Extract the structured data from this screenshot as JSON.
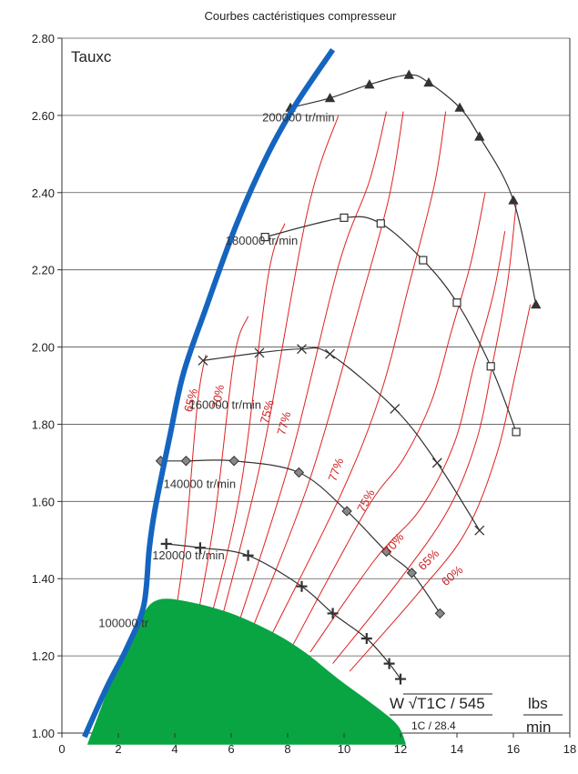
{
  "chart_data": {
    "type": "line",
    "title": "Courbes cactéristiques compresseur",
    "ylabel": "Tauxc",
    "xlim": [
      0,
      18
    ],
    "ylim": [
      1.0,
      2.8
    ],
    "xticks": [
      0,
      2,
      4,
      6,
      8,
      10,
      12,
      14,
      16,
      18
    ],
    "xtick_labels": [
      "0",
      "2",
      "4",
      "6",
      "8",
      "10",
      "12",
      "14",
      "16",
      "18"
    ],
    "yticks": [
      1.0,
      1.2,
      1.4,
      1.6,
      1.8,
      2.0,
      2.2,
      2.4,
      2.6,
      2.8
    ],
    "ytick_labels": [
      "1.00",
      "1.20",
      "1.40",
      "1.60",
      "1.80",
      "2.00",
      "2.20",
      "2.40",
      "2.60",
      "2.80"
    ],
    "grid": "horizontal",
    "units": {
      "flow_formula": "W √T1C / 545",
      "flow_formula_lower": "1C / 28.4",
      "flow_unit_num": "lbs",
      "flow_unit_den": "min"
    },
    "speed_lines": [
      {
        "label": "200000 tr/min",
        "marker": "triangle",
        "label_pos": [
          7.1,
          2.585
        ],
        "points": [
          [
            8.1,
            2.62
          ],
          [
            9.5,
            2.645
          ],
          [
            10.9,
            2.68
          ],
          [
            12.3,
            2.705
          ],
          [
            13.0,
            2.685
          ],
          [
            14.1,
            2.62
          ],
          [
            14.8,
            2.545
          ],
          [
            16.0,
            2.38
          ],
          [
            16.8,
            2.11
          ]
        ]
      },
      {
        "label": "180000 tr/min",
        "marker": "square",
        "label_pos": [
          5.8,
          2.265
        ],
        "points": [
          [
            7.2,
            2.285
          ],
          [
            10.0,
            2.335
          ],
          [
            11.3,
            2.32
          ],
          [
            12.8,
            2.225
          ],
          [
            14.0,
            2.115
          ],
          [
            15.2,
            1.95
          ],
          [
            16.1,
            1.78
          ]
        ]
      },
      {
        "label": "160000 tr/min",
        "marker": "cross",
        "label_pos": [
          4.5,
          1.84
        ],
        "points": [
          [
            5.0,
            1.965
          ],
          [
            7.0,
            1.985
          ],
          [
            8.5,
            1.995
          ],
          [
            9.5,
            1.982
          ],
          [
            11.8,
            1.84
          ],
          [
            13.3,
            1.7
          ],
          [
            14.8,
            1.525
          ]
        ]
      },
      {
        "label": "140000 tr/min",
        "marker": "diamond",
        "label_pos": [
          3.6,
          1.635
        ],
        "points": [
          [
            3.5,
            1.705
          ],
          [
            4.4,
            1.705
          ],
          [
            6.1,
            1.705
          ],
          [
            8.4,
            1.675
          ],
          [
            10.1,
            1.575
          ],
          [
            11.5,
            1.47
          ],
          [
            12.4,
            1.415
          ],
          [
            13.4,
            1.31
          ]
        ]
      },
      {
        "label": "120000 tr/min",
        "marker": "plus",
        "label_pos": [
          3.2,
          1.45
        ],
        "points": [
          [
            3.7,
            1.49
          ],
          [
            4.9,
            1.48
          ],
          [
            6.6,
            1.46
          ],
          [
            8.5,
            1.38
          ],
          [
            9.6,
            1.31
          ],
          [
            10.8,
            1.245
          ],
          [
            11.6,
            1.18
          ],
          [
            12.0,
            1.14
          ]
        ]
      },
      {
        "label": "100000 tr",
        "marker": "none",
        "label_pos": [
          1.3,
          1.275
        ],
        "points": []
      }
    ],
    "surge_line": {
      "color": "#1565c0",
      "points": [
        [
          0.8,
          0.99
        ],
        [
          1.6,
          1.12
        ],
        [
          2.3,
          1.22
        ],
        [
          2.9,
          1.33
        ],
        [
          3.1,
          1.48
        ],
        [
          3.3,
          1.58
        ],
        [
          3.8,
          1.76
        ],
        [
          4.3,
          1.93
        ],
        [
          5.1,
          2.1
        ],
        [
          6.2,
          2.32
        ],
        [
          7.3,
          2.5
        ],
        [
          8.3,
          2.63
        ],
        [
          9.6,
          2.77
        ]
      ]
    },
    "efficiency_labels": [
      {
        "text": "65%",
        "at": [
          4.6,
          1.83
        ],
        "angle": -75
      },
      {
        "text": "70%",
        "at": [
          5.6,
          1.84
        ],
        "angle": -80
      },
      {
        "text": "75%",
        "at": [
          7.3,
          1.8
        ],
        "angle": -75
      },
      {
        "text": "77%",
        "at": [
          7.9,
          1.77
        ],
        "angle": -75
      },
      {
        "text": "77%",
        "at": [
          9.7,
          1.65
        ],
        "angle": -70
      },
      {
        "text": "75%",
        "at": [
          10.7,
          1.57
        ],
        "angle": -62
      },
      {
        "text": "70%",
        "at": [
          11.6,
          1.46
        ],
        "angle": -50
      },
      {
        "text": "65%",
        "at": [
          12.8,
          1.42
        ],
        "angle": -45
      },
      {
        "text": "60%",
        "at": [
          13.6,
          1.38
        ],
        "angle": -40
      }
    ],
    "efficiency_lines": [
      [
        [
          3.6,
          1.12
        ],
        [
          4.3,
          1.45
        ],
        [
          4.8,
          1.85
        ],
        [
          5.1,
          1.98
        ]
      ],
      [
        [
          4.5,
          1.18
        ],
        [
          5.4,
          1.55
        ],
        [
          6.1,
          1.97
        ],
        [
          6.6,
          2.08
        ]
      ],
      [
        [
          5.0,
          1.22
        ],
        [
          6.3,
          1.62
        ],
        [
          7.3,
          2.18
        ],
        [
          7.9,
          2.32
        ]
      ],
      [
        [
          5.5,
          1.25
        ],
        [
          7.1,
          1.72
        ],
        [
          8.7,
          2.35
        ],
        [
          9.8,
          2.6
        ]
      ],
      [
        [
          6.2,
          1.27
        ],
        [
          8.1,
          1.71
        ],
        [
          9.8,
          2.21
        ],
        [
          10.9,
          2.43
        ],
        [
          11.5,
          2.61
        ]
      ],
      [
        [
          6.8,
          1.28
        ],
        [
          8.8,
          1.66
        ],
        [
          10.6,
          2.12
        ],
        [
          11.6,
          2.39
        ],
        [
          12.1,
          2.61
        ]
      ],
      [
        [
          7.4,
          1.25
        ],
        [
          9.9,
          1.62
        ],
        [
          11.3,
          1.88
        ],
        [
          12.3,
          2.16
        ],
        [
          13.2,
          2.42
        ],
        [
          13.6,
          2.61
        ]
      ],
      [
        [
          8.2,
          1.23
        ],
        [
          10.8,
          1.58
        ],
        [
          12.1,
          1.71
        ],
        [
          13.1,
          1.86
        ],
        [
          13.8,
          2.04
        ],
        [
          14.5,
          2.22
        ],
        [
          15.0,
          2.4
        ]
      ],
      [
        [
          8.8,
          1.21
        ],
        [
          11.1,
          1.45
        ],
        [
          12.7,
          1.58
        ],
        [
          13.9,
          1.75
        ],
        [
          14.6,
          1.95
        ],
        [
          15.3,
          2.14
        ],
        [
          15.7,
          2.3
        ]
      ],
      [
        [
          9.6,
          1.18
        ],
        [
          12.0,
          1.4
        ],
        [
          13.7,
          1.58
        ],
        [
          14.7,
          1.76
        ],
        [
          15.3,
          1.97
        ],
        [
          15.8,
          2.17
        ],
        [
          16.1,
          2.37
        ]
      ],
      [
        [
          10.2,
          1.16
        ],
        [
          12.6,
          1.36
        ],
        [
          14.3,
          1.52
        ],
        [
          15.4,
          1.72
        ],
        [
          16.1,
          1.94
        ],
        [
          16.6,
          2.11
        ]
      ]
    ],
    "green_region": {
      "color": "#0aa543",
      "points": [
        [
          0.9,
          0.97
        ],
        [
          2.1,
          1.2
        ],
        [
          2.8,
          1.3
        ],
        [
          3.4,
          1.345
        ],
        [
          4.5,
          1.34
        ],
        [
          6.0,
          1.31
        ],
        [
          7.5,
          1.26
        ],
        [
          8.6,
          1.21
        ],
        [
          9.8,
          1.14
        ],
        [
          11.1,
          1.07
        ],
        [
          11.9,
          1.02
        ],
        [
          12.2,
          0.97
        ]
      ]
    }
  }
}
